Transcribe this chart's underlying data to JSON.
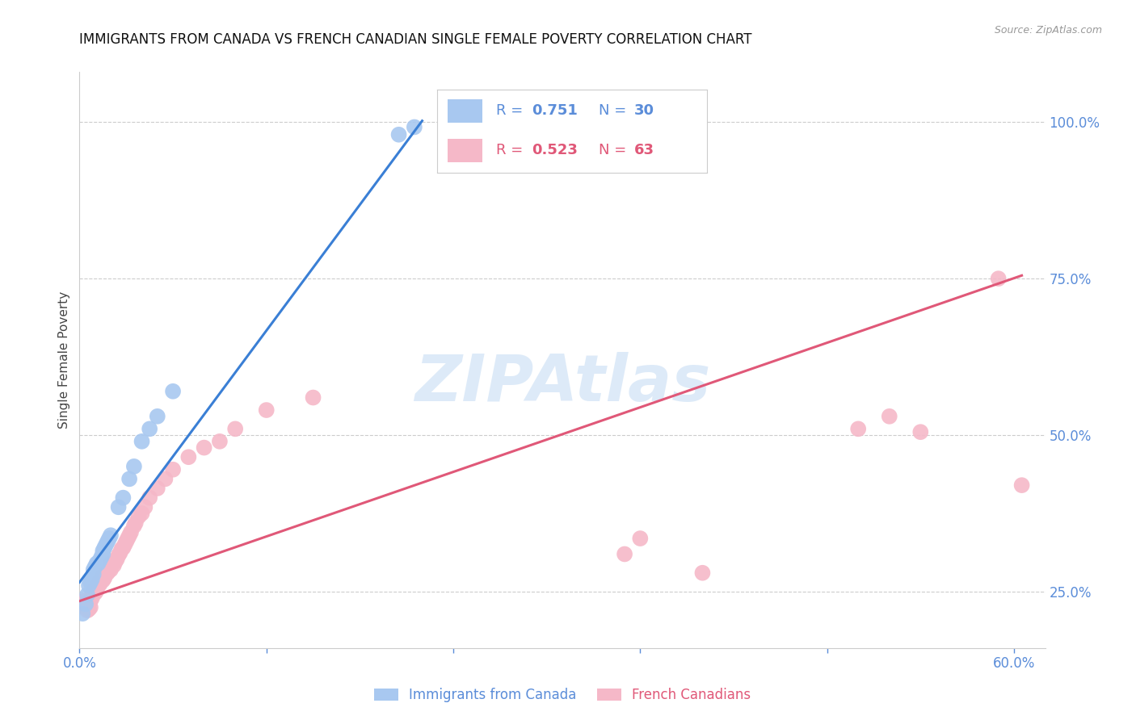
{
  "title": "IMMIGRANTS FROM CANADA VS FRENCH CANADIAN SINGLE FEMALE POVERTY CORRELATION CHART",
  "source": "Source: ZipAtlas.com",
  "ylabel": "Single Female Poverty",
  "xlim": [
    0.0,
    0.62
  ],
  "ylim": [
    0.16,
    1.08
  ],
  "xticks": [
    0.0,
    0.12,
    0.24,
    0.36,
    0.48,
    0.6
  ],
  "xticklabels": [
    "0.0%",
    "",
    "",
    "",
    "",
    "60.0%"
  ],
  "yticks_right": [
    0.25,
    0.5,
    0.75,
    1.0
  ],
  "ytick_labels_right": [
    "25.0%",
    "50.0%",
    "75.0%",
    "100.0%"
  ],
  "blue_color": "#a8c8f0",
  "pink_color": "#f5b8c8",
  "blue_line_color": "#3a7fd5",
  "pink_line_color": "#e05878",
  "watermark": "ZIPAtlas",
  "blue_scatter_x": [
    0.002,
    0.004,
    0.005,
    0.006,
    0.007,
    0.008,
    0.009,
    0.009,
    0.01,
    0.011,
    0.012,
    0.013,
    0.014,
    0.015,
    0.015,
    0.016,
    0.017,
    0.018,
    0.019,
    0.02,
    0.025,
    0.028,
    0.032,
    0.035,
    0.04,
    0.045,
    0.05,
    0.06,
    0.205,
    0.215
  ],
  "blue_scatter_y": [
    0.215,
    0.23,
    0.245,
    0.26,
    0.265,
    0.27,
    0.278,
    0.285,
    0.29,
    0.295,
    0.295,
    0.3,
    0.305,
    0.31,
    0.315,
    0.32,
    0.325,
    0.33,
    0.335,
    0.34,
    0.385,
    0.4,
    0.43,
    0.45,
    0.49,
    0.51,
    0.53,
    0.57,
    0.98,
    0.992
  ],
  "pink_scatter_x": [
    0.002,
    0.003,
    0.004,
    0.005,
    0.005,
    0.006,
    0.006,
    0.007,
    0.007,
    0.008,
    0.008,
    0.009,
    0.01,
    0.01,
    0.011,
    0.011,
    0.012,
    0.013,
    0.013,
    0.014,
    0.015,
    0.015,
    0.016,
    0.017,
    0.018,
    0.019,
    0.02,
    0.02,
    0.022,
    0.023,
    0.024,
    0.025,
    0.026,
    0.027,
    0.028,
    0.029,
    0.03,
    0.031,
    0.032,
    0.033,
    0.035,
    0.036,
    0.038,
    0.04,
    0.042,
    0.045,
    0.05,
    0.055,
    0.06,
    0.07,
    0.08,
    0.09,
    0.1,
    0.12,
    0.15,
    0.35,
    0.36,
    0.4,
    0.5,
    0.52,
    0.54,
    0.59,
    0.605
  ],
  "pink_scatter_y": [
    0.235,
    0.23,
    0.225,
    0.22,
    0.228,
    0.222,
    0.232,
    0.225,
    0.235,
    0.24,
    0.245,
    0.25,
    0.248,
    0.255,
    0.252,
    0.258,
    0.26,
    0.262,
    0.268,
    0.27,
    0.268,
    0.275,
    0.272,
    0.278,
    0.28,
    0.285,
    0.285,
    0.295,
    0.292,
    0.298,
    0.302,
    0.308,
    0.312,
    0.318,
    0.32,
    0.325,
    0.33,
    0.335,
    0.34,
    0.345,
    0.355,
    0.36,
    0.37,
    0.375,
    0.385,
    0.4,
    0.415,
    0.43,
    0.445,
    0.465,
    0.48,
    0.49,
    0.51,
    0.54,
    0.56,
    0.31,
    0.335,
    0.28,
    0.51,
    0.53,
    0.505,
    0.75,
    0.42
  ],
  "blue_line_x": [
    0.0,
    0.22
  ],
  "blue_line_y": [
    0.265,
    1.002
  ],
  "pink_line_x": [
    0.0,
    0.605
  ],
  "pink_line_y": [
    0.235,
    0.755
  ],
  "grid_color": "#cccccc",
  "title_fontsize": 12,
  "tick_color": "#5b8dd9",
  "legend_blue_r": "0.751",
  "legend_blue_n": "30",
  "legend_pink_r": "0.523",
  "legend_pink_n": "63"
}
